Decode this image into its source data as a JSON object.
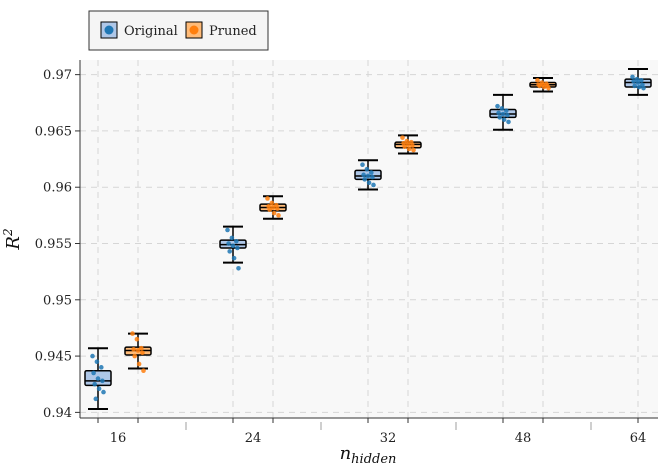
{
  "chart_data": {
    "type": "box",
    "xlabel_main": "n",
    "xlabel_sub": "hidden",
    "ylabel_main": "R",
    "ylabel_sup": "2",
    "categories": [
      "16",
      "24",
      "32",
      "48",
      "64"
    ],
    "ylim": [
      0.9395,
      0.9713
    ],
    "yticks": [
      0.94,
      0.945,
      0.95,
      0.955,
      0.96,
      0.965,
      0.97
    ],
    "ytick_labels": [
      "0.94",
      "0.945",
      "0.95",
      "0.955",
      "0.96",
      "0.965",
      "0.97"
    ],
    "grid": true,
    "legend_position": "top-left, outside plot",
    "series": [
      {
        "name": "Original",
        "color": "#1f77b4",
        "box_fill": "#aec7e8",
        "boxes": [
          {
            "whislo": 0.9403,
            "q1": 0.9424,
            "med": 0.9428,
            "q3": 0.9437,
            "whishi": 0.9457,
            "points": [
              0.945,
              0.9445,
              0.944,
              0.9435,
              0.943,
              0.9428,
              0.9425,
              0.9421,
              0.9418,
              0.9412
            ]
          },
          {
            "whislo": 0.9533,
            "q1": 0.9546,
            "med": 0.9549,
            "q3": 0.9553,
            "whishi": 0.9565,
            "points": [
              0.9562,
              0.9555,
              0.9552,
              0.955,
              0.9548,
              0.9546,
              0.9543,
              0.9537,
              0.9528
            ]
          },
          {
            "whislo": 0.9598,
            "q1": 0.9607,
            "med": 0.961,
            "q3": 0.9615,
            "whishi": 0.9624,
            "points": [
              0.962,
              0.9616,
              0.9613,
              0.9611,
              0.961,
              0.9609,
              0.9607,
              0.9604,
              0.9602
            ]
          },
          {
            "whislo": 0.9651,
            "q1": 0.9662,
            "med": 0.9665,
            "q3": 0.9669,
            "whishi": 0.9682,
            "points": [
              0.9672,
              0.967,
              0.9668,
              0.9666,
              0.9665,
              0.9664,
              0.9662,
              0.966,
              0.9658
            ]
          },
          {
            "whislo": 0.9682,
            "q1": 0.9689,
            "med": 0.9693,
            "q3": 0.9696,
            "whishi": 0.9705,
            "points": [
              0.9698,
              0.9696,
              0.9695,
              0.9694,
              0.9693,
              0.9691,
              0.969,
              0.9689,
              0.9688
            ]
          }
        ]
      },
      {
        "name": "Pruned",
        "color": "#ff7f0e",
        "box_fill": "#ffbb78",
        "boxes": [
          {
            "whislo": 0.9439,
            "q1": 0.9451,
            "med": 0.9455,
            "q3": 0.9458,
            "whishi": 0.947,
            "points": [
              0.947,
              0.9465,
              0.9457,
              0.9456,
              0.9455,
              0.9453,
              0.945,
              0.9443,
              0.9437
            ]
          },
          {
            "whislo": 0.9572,
            "q1": 0.9579,
            "med": 0.9582,
            "q3": 0.9585,
            "whishi": 0.9592,
            "points": [
              0.959,
              0.9586,
              0.9584,
              0.9583,
              0.9582,
              0.9581,
              0.958,
              0.9577,
              0.9575
            ]
          },
          {
            "whislo": 0.963,
            "q1": 0.9635,
            "med": 0.9638,
            "q3": 0.964,
            "whishi": 0.9646,
            "points": [
              0.9644,
              0.9641,
              0.964,
              0.9639,
              0.9638,
              0.9637,
              0.9636,
              0.9634,
              0.9633
            ]
          },
          {
            "whislo": 0.9685,
            "q1": 0.9689,
            "med": 0.9691,
            "q3": 0.9693,
            "whishi": 0.9697,
            "points": [
              0.9695,
              0.9693,
              0.9692,
              0.9691,
              0.9691,
              0.969,
              0.969,
              0.9689,
              0.9688
            ]
          }
        ]
      }
    ]
  }
}
